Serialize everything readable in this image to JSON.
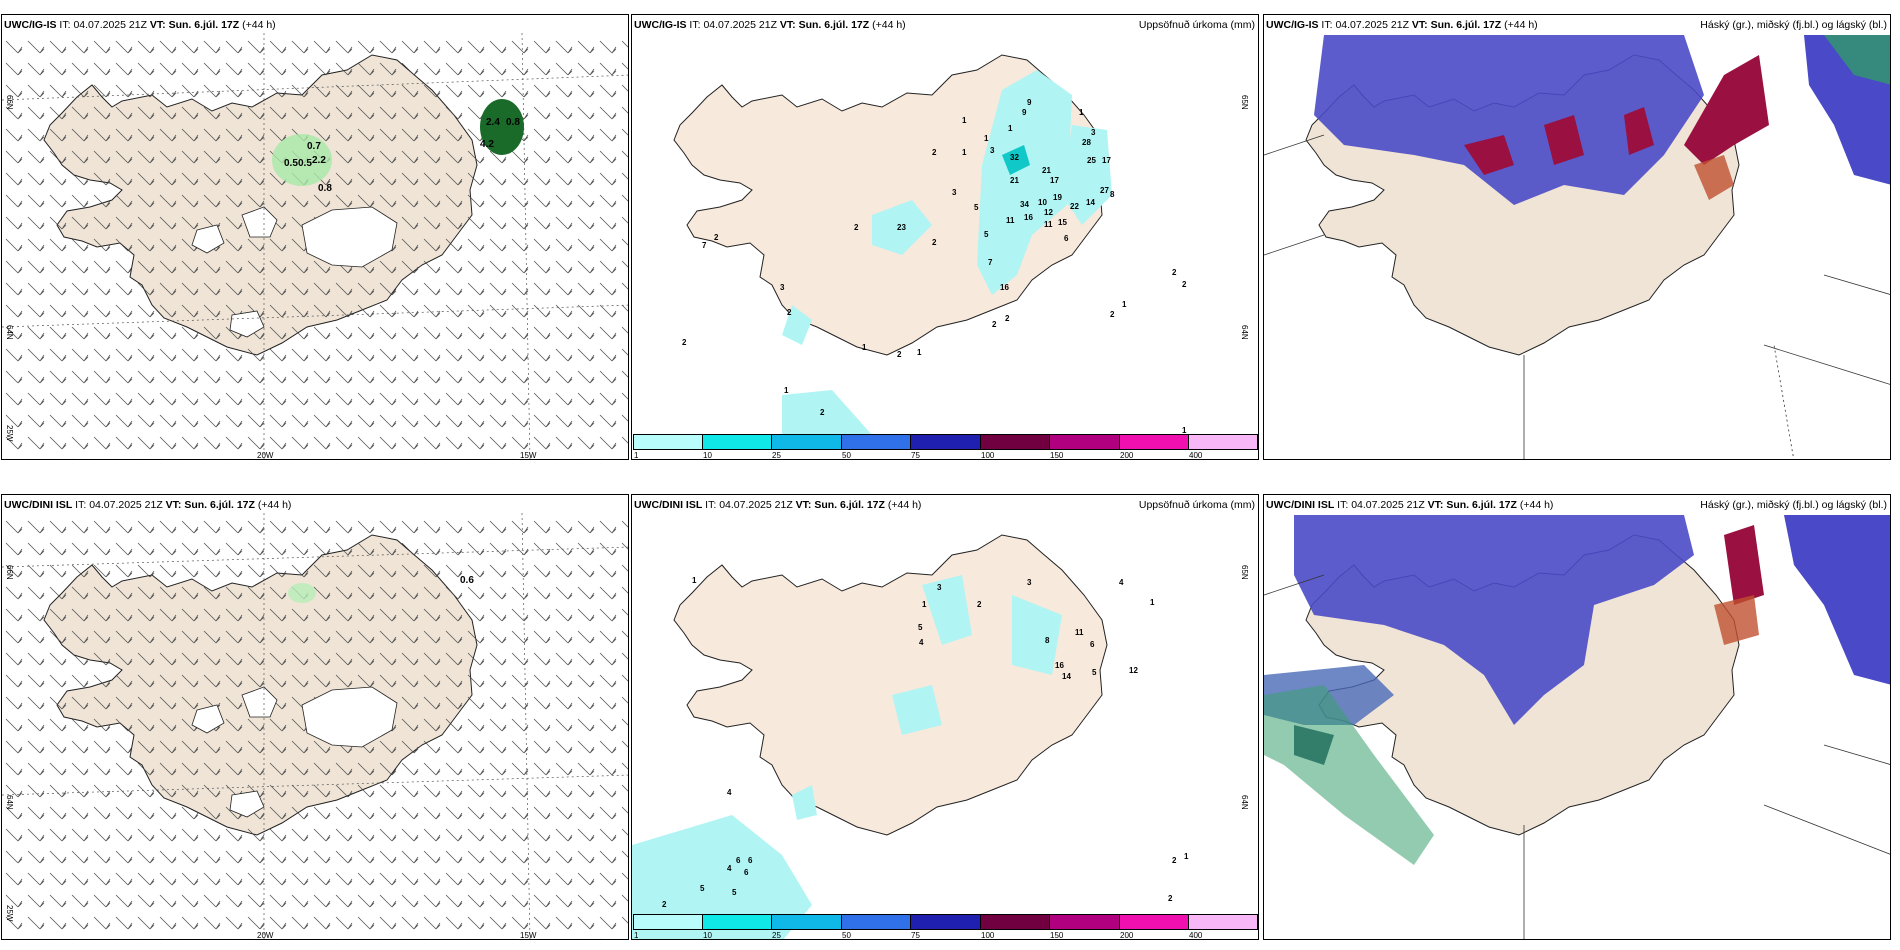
{
  "colors": {
    "land": "#efe4d6",
    "coast": "#222222",
    "ice": "#ffffff",
    "sea": "#ffffff",
    "precip_light": "#b0f4f4",
    "cloud_high": "#4040c0",
    "cloud_mid": "#9a1040",
    "cloud_low": "#35a060"
  },
  "panels": [
    {
      "model": "UWC/IG-IS",
      "it_label": "IT:",
      "it_value": "04.07.2025 21Z",
      "vt_label": "VT: Sun. 6.júl. 17Z",
      "lead": "(+44 h)",
      "right_title": "",
      "lat_labels": [
        "66N",
        "64N",
        "25W"
      ],
      "lon_labels": [
        "20W",
        "15W"
      ],
      "values": [
        "0.7",
        "0.5",
        "0.5",
        "2.2",
        "0.8",
        "2.4",
        "0.8",
        "4.2"
      ]
    },
    {
      "model": "UWC/IG-IS",
      "it_label": "IT:",
      "it_value": "04.07.2025 21Z",
      "vt_label": "VT: Sun. 6.júl. 17Z",
      "lead": "(+44 h)",
      "right_title": "Uppsöfnuð úrkoma (mm)",
      "lat_labels": [
        "65N",
        "64N"
      ],
      "values": [
        "1",
        "9",
        "1",
        "1",
        "3",
        "3",
        "1",
        "2",
        "1",
        "3",
        "28",
        "32",
        "17",
        "21",
        "17",
        "21",
        "25",
        "27",
        "9",
        "34",
        "10",
        "19",
        "12",
        "22",
        "14",
        "16",
        "11",
        "15",
        "8",
        "11",
        "7",
        "6",
        "2",
        "2",
        "1",
        "2",
        "1",
        "2",
        "1",
        "2",
        "3",
        "5",
        "5",
        "2",
        "1",
        "1",
        "23",
        "2",
        "1",
        "2",
        "1",
        "1",
        "5",
        "7",
        "2",
        "3",
        "2",
        "16",
        "2",
        "2",
        "1",
        "2",
        "1",
        "2",
        "2",
        "2",
        "1",
        "2",
        "1",
        "3",
        "1",
        "2",
        "1",
        "1",
        "2"
      ]
    },
    {
      "model": "UWC/IG-IS",
      "it_label": "IT:",
      "it_value": "04.07.2025 21Z",
      "vt_label": "VT: Sun. 6.júl. 17Z",
      "lead": "(+44 h)",
      "right_title": "Háský (gr.), miðský (fj.bl.) og lágský (bl.)"
    },
    {
      "model": "UWC/DINI ISL",
      "it_label": "IT:",
      "it_value": "04.07.2025 21Z",
      "vt_label": "VT: Sun. 6.júl. 17Z",
      "lead": "(+44 h)",
      "right_title": "",
      "lat_labels": [
        "66N",
        "64N",
        "25W"
      ],
      "lon_labels": [
        "20W",
        "15W"
      ],
      "values": [
        "0.6"
      ]
    },
    {
      "model": "UWC/DINI ISL",
      "it_label": "IT:",
      "it_value": "04.07.2025 21Z",
      "vt_label": "VT: Sun. 6.júl. 17Z",
      "lead": "(+44 h)",
      "right_title": "Uppsöfnuð úrkoma (mm)",
      "lat_labels": [
        "65N",
        "64N"
      ],
      "values": [
        "1",
        "3",
        "2",
        "1",
        "3",
        "2",
        "5",
        "3",
        "4",
        "4",
        "1",
        "8",
        "11",
        "6",
        "3",
        "2",
        "16",
        "14",
        "5",
        "12",
        "2",
        "3",
        "1",
        "1",
        "2",
        "3",
        "2",
        "1",
        "2",
        "8",
        "1",
        "2",
        "1",
        "3",
        "2",
        "3",
        "1",
        "4",
        "3",
        "2",
        "1",
        "2",
        "2",
        "2",
        "4",
        "6",
        "6",
        "6",
        "4",
        "5",
        "5",
        "2",
        "2",
        "2",
        "1",
        "2",
        "1",
        "2",
        "1",
        "2",
        "2"
      ]
    },
    {
      "model": "UWC/DINI ISL",
      "it_label": "IT:",
      "it_value": "04.07.2025 21Z",
      "vt_label": "VT: Sun. 6.júl. 17Z",
      "lead": "(+44 h)",
      "right_title": "Háský (gr.), miðský (fj.bl.) og lágský (bl.)"
    }
  ],
  "colorbar": {
    "ticks": [
      "1",
      "10",
      "25",
      "50",
      "75",
      "100",
      "150",
      "200",
      "400"
    ],
    "colors": [
      "#b8fcfc",
      "#10e8e8",
      "#10b8e8",
      "#3070e8",
      "#2020b0",
      "#700040",
      "#b00080",
      "#f010b0",
      "#f8b8f8"
    ]
  }
}
